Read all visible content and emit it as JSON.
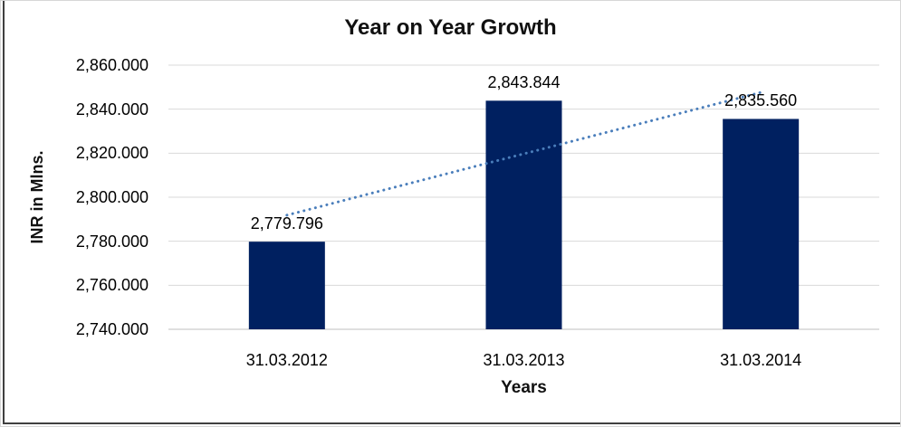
{
  "chart_data": {
    "type": "bar",
    "title": "Year on Year Growth",
    "xlabel": "Years",
    "ylabel": "INR in Mlns.",
    "categories": [
      "31.03.2012",
      "31.03.2013",
      "31.03.2014"
    ],
    "values": [
      2779.796,
      2843.844,
      2835.56
    ],
    "data_labels": [
      "2,779.796",
      "2,843.844",
      "2,835.560"
    ],
    "ylim": [
      2740,
      2860
    ],
    "ytick_step": 20,
    "ytick_labels": [
      "2,740.000",
      "2,760.000",
      "2,780.000",
      "2,800.000",
      "2,820.000",
      "2,840.000",
      "2,860.000"
    ],
    "grid": true,
    "legend": "none",
    "trendline": {
      "type": "linear",
      "style": "dotted"
    },
    "colors": {
      "bar": "#002060",
      "trendline": "#4a7ebb",
      "gridline": "#d9d9d9",
      "axis_line": "#bfbfbf",
      "text": "#000000",
      "title": "#111111",
      "frame_dark": "#3f3f3f",
      "frame_light": "#d7d7d7"
    }
  }
}
